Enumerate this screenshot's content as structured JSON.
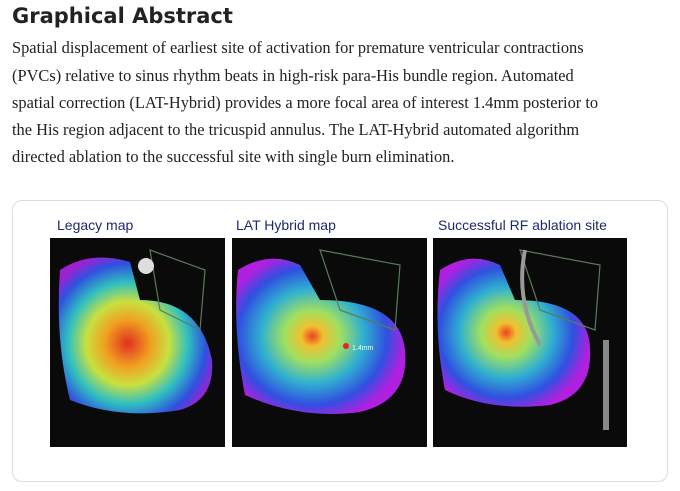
{
  "header": {
    "title": "Graphical Abstract"
  },
  "abstract": {
    "lines": [
      "Spatial displacement of earliest site of activation for premature ventricular contractions",
      "(PVCs) relative to sinus rhythm beats in high-risk para-His bundle region. Automated",
      "spatial correction (LAT-Hybrid) provides a more focal area of interest 1.4mm posterior to",
      "the His region adjacent to the tricuspid annulus. The LAT-Hybrid automated algorithm",
      "directed ablation to the successful site with single burn elimination."
    ]
  },
  "figure": {
    "panels": [
      {
        "label": "Legacy map"
      },
      {
        "label": "LAT Hybrid map",
        "annotation": "1.4mm"
      },
      {
        "label": "Successful RF ablation site"
      }
    ]
  }
}
